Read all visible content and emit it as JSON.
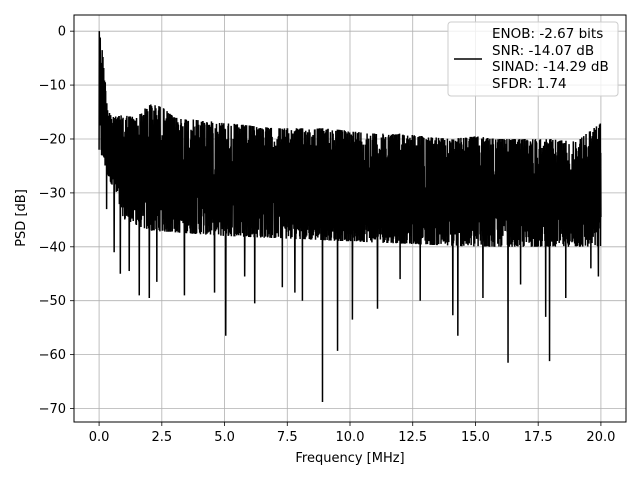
{
  "chart_data": {
    "type": "line",
    "xlabel": "Frequency [MHz]",
    "ylabel": "PSD [dB]",
    "xlim": [
      -1.0,
      21.0
    ],
    "ylim": [
      -72.5,
      3.0
    ],
    "xticks": [
      0.0,
      2.5,
      5.0,
      7.5,
      10.0,
      12.5,
      15.0,
      17.5,
      20.0
    ],
    "xtick_labels": [
      "0.0",
      "2.5",
      "5.0",
      "7.5",
      "10.0",
      "12.5",
      "15.0",
      "17.5",
      "20.0"
    ],
    "yticks": [
      0,
      -10,
      -20,
      -30,
      -40,
      -50,
      -60,
      -70
    ],
    "ytick_labels": [
      "0",
      "−10",
      "−20",
      "−30",
      "−40",
      "−50",
      "−60",
      "−70"
    ],
    "grid": true,
    "legend_position": "top-right",
    "series": [
      {
        "name": "ENOB: -2.67 bits\nSNR: -14.07 dB\nSINAD: -14.29 dB\nSFDR: 1.74",
        "legend_lines": [
          "ENOB: -2.67 bits",
          "SNR: -14.07 dB",
          "SINAD: -14.29 dB",
          "SFDR: 1.74"
        ],
        "color": "#000000",
        "upper_envelope": [
          [
            0.0,
            0.0
          ],
          [
            0.1,
            -2.0
          ],
          [
            0.3,
            -12.0
          ],
          [
            0.5,
            -16.0
          ],
          [
            1.0,
            -15.5
          ],
          [
            1.5,
            -16.0
          ],
          [
            2.0,
            -13.5
          ],
          [
            2.5,
            -14.0
          ],
          [
            3.0,
            -16.0
          ],
          [
            4.0,
            -16.5
          ],
          [
            5.0,
            -17.0
          ],
          [
            6.0,
            -17.5
          ],
          [
            7.0,
            -18.0
          ],
          [
            8.0,
            -18.0
          ],
          [
            9.0,
            -18.0
          ],
          [
            10.0,
            -18.5
          ],
          [
            11.0,
            -19.0
          ],
          [
            12.0,
            -19.0
          ],
          [
            13.0,
            -19.5
          ],
          [
            14.0,
            -20.0
          ],
          [
            15.0,
            -19.5
          ],
          [
            16.0,
            -20.0
          ],
          [
            17.0,
            -20.0
          ],
          [
            18.0,
            -20.0
          ],
          [
            19.0,
            -20.5
          ],
          [
            20.0,
            -17.0
          ]
        ],
        "lower_typical": [
          [
            0.0,
            -22.0
          ],
          [
            1.0,
            -35.0
          ],
          [
            2.0,
            -37.0
          ],
          [
            5.0,
            -38.0
          ],
          [
            10.0,
            -39.0
          ],
          [
            15.0,
            -40.0
          ],
          [
            20.0,
            -40.0
          ]
        ],
        "notable_dips": [
          [
            0.3,
            -33.0
          ],
          [
            0.6,
            -41.0
          ],
          [
            0.85,
            -45.0
          ],
          [
            1.2,
            -44.5
          ],
          [
            1.6,
            -49.0
          ],
          [
            2.0,
            -49.5
          ],
          [
            2.3,
            -46.5
          ],
          [
            3.4,
            -49.0
          ],
          [
            4.6,
            -48.5
          ],
          [
            5.05,
            -56.5
          ],
          [
            5.8,
            -45.5
          ],
          [
            6.2,
            -50.5
          ],
          [
            7.3,
            -47.5
          ],
          [
            7.8,
            -48.5
          ],
          [
            8.1,
            -50.0
          ],
          [
            8.9,
            -68.8
          ],
          [
            9.5,
            -59.3
          ],
          [
            10.1,
            -53.5
          ],
          [
            11.1,
            -51.5
          ],
          [
            12.0,
            -46.0
          ],
          [
            12.8,
            -50.0
          ],
          [
            14.1,
            -52.7
          ],
          [
            14.3,
            -56.5
          ],
          [
            15.3,
            -49.5
          ],
          [
            16.3,
            -61.5
          ],
          [
            16.8,
            -47.0
          ],
          [
            17.8,
            -53.0
          ],
          [
            17.95,
            -61.2
          ],
          [
            18.6,
            -49.5
          ],
          [
            19.6,
            -44.0
          ],
          [
            19.9,
            -45.5
          ]
        ]
      }
    ]
  }
}
